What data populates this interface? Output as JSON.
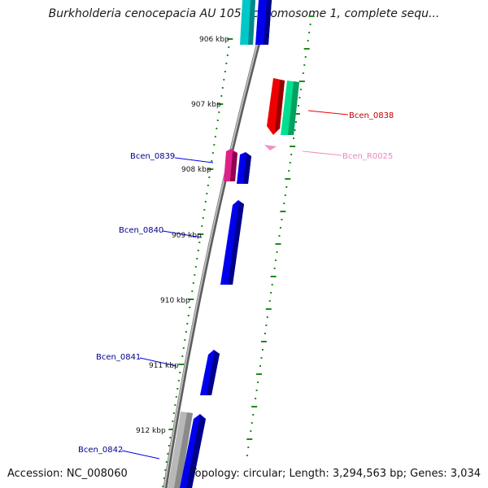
{
  "title": "Burkholderia cenocepacia AU 1054 chromosome 1, complete sequ...",
  "accession": "Accession: NC_008060",
  "summary": "Topology: circular; Length: 3,294,563 bp; Genes: 3,034",
  "colors": {
    "backbone": "#8a8a8a",
    "tick": "#1f8a1f",
    "label_blue": "#00008b",
    "label_red": "#c00000",
    "label_pink": "#e888c0",
    "gene_blue": "#0000ee",
    "gene_cyan": "#00c8c8",
    "gene_red": "#ee0000",
    "gene_green": "#00e090",
    "gene_magenta": "#e0208a",
    "gene_gray": "#b8b8b8",
    "rna_pink": "#f090c0"
  },
  "kbp_labels": [
    "906 kbp",
    "907 kbp",
    "908 kbp",
    "909 kbp",
    "910 kbp",
    "911 kbp",
    "912 kbp"
  ],
  "gene_labels": [
    "Bcen_0838",
    "Bcen_R0025",
    "Bcen_0839",
    "Bcen_0840",
    "Bcen_0841",
    "Bcen_0842"
  ]
}
